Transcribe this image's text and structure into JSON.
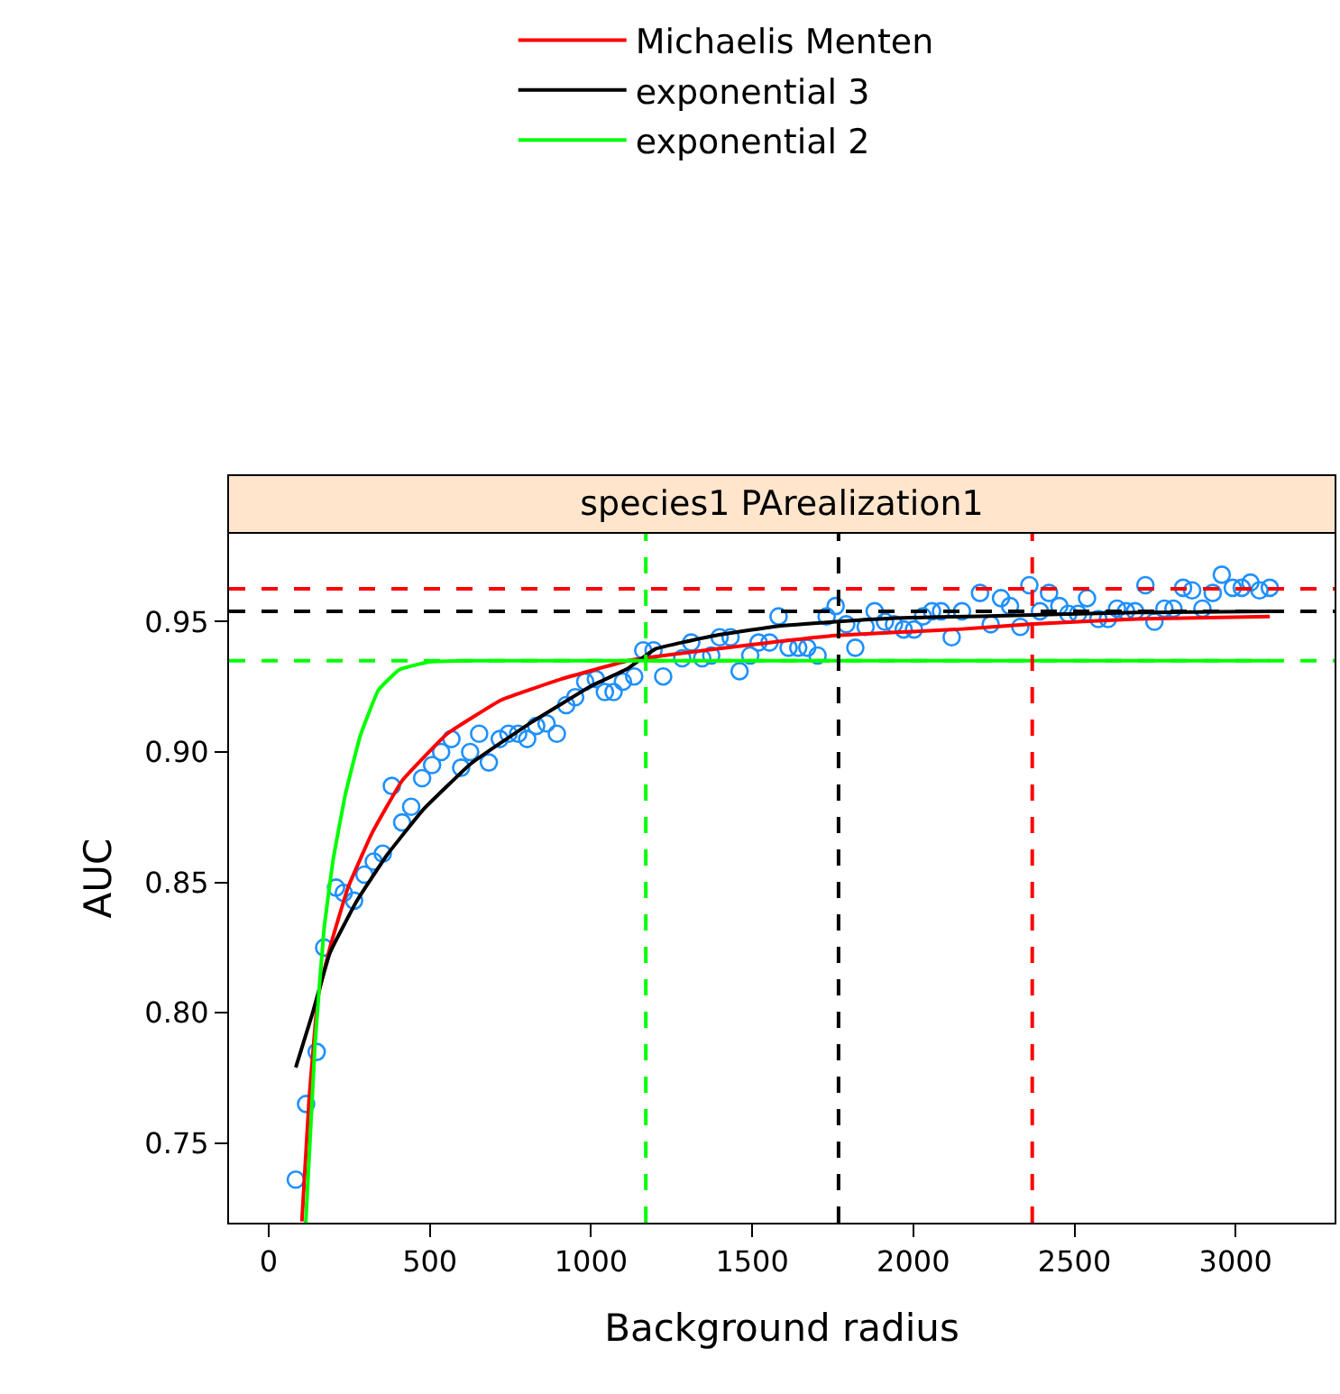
{
  "chart_data": {
    "type": "scatter",
    "title": "species1 PArealization1",
    "xlabel": "Background radius",
    "ylabel": "AUC",
    "xlim": [
      -123,
      3307
    ],
    "ylim": [
      0.7195,
      0.9837
    ],
    "xticks": [
      0,
      500,
      1000,
      1500,
      2000,
      2500,
      3000
    ],
    "yticks": [
      {
        "value": 0.75,
        "label": "0.75"
      },
      {
        "value": 0.8,
        "label": "0.80"
      },
      {
        "value": 0.85,
        "label": "0.85"
      },
      {
        "value": 0.9,
        "label": "0.90"
      },
      {
        "value": 0.95,
        "label": "0.95"
      }
    ],
    "legend": "top",
    "series": [
      {
        "marker": "circle",
        "color": "#1e90ff",
        "x": [
          84,
          116,
          149,
          172,
          209,
          233,
          265,
          297,
          326,
          354,
          382,
          414,
          442,
          476,
          507,
          535,
          567,
          597,
          625,
          653,
          683,
          717,
          744,
          774,
          802,
          830,
          862,
          894,
          923,
          951,
          982,
          1015,
          1043,
          1070,
          1099,
          1134,
          1162,
          1194,
          1224,
          1283,
          1311,
          1345,
          1373,
          1399,
          1433,
          1461,
          1494,
          1520,
          1554,
          1582,
          1613,
          1643,
          1671,
          1703,
          1731,
          1759,
          1792,
          1820,
          1852,
          1880,
          1912,
          1940,
          1970,
          2002,
          2030,
          2058,
          2086,
          2119,
          2151,
          2207,
          2240,
          2272,
          2300,
          2332,
          2360,
          2393,
          2421,
          2453,
          2481,
          2511,
          2539,
          2574,
          2604,
          2632,
          2660,
          2688,
          2720,
          2748,
          2779,
          2807,
          2837,
          2865,
          2897,
          2929,
          2957,
          2991,
          3019,
          3046,
          3074,
          3106
        ],
        "values": [
          0.736,
          0.765,
          0.785,
          0.825,
          0.848,
          0.846,
          0.843,
          0.853,
          0.858,
          0.861,
          0.887,
          0.873,
          0.879,
          0.89,
          0.895,
          0.9,
          0.905,
          0.894,
          0.9,
          0.907,
          0.896,
          0.905,
          0.907,
          0.907,
          0.905,
          0.91,
          0.911,
          0.907,
          0.918,
          0.921,
          0.927,
          0.928,
          0.923,
          0.923,
          0.927,
          0.929,
          0.939,
          0.939,
          0.929,
          0.936,
          0.942,
          0.936,
          0.937,
          0.944,
          0.944,
          0.931,
          0.937,
          0.942,
          0.942,
          0.952,
          0.94,
          0.94,
          0.94,
          0.937,
          0.952,
          0.956,
          0.949,
          0.94,
          0.948,
          0.954,
          0.95,
          0.949,
          0.947,
          0.947,
          0.952,
          0.954,
          0.954,
          0.944,
          0.954,
          0.961,
          0.949,
          0.959,
          0.956,
          0.948,
          0.964,
          0.954,
          0.961,
          0.956,
          0.953,
          0.953,
          0.959,
          0.951,
          0.951,
          0.955,
          0.954,
          0.954,
          0.964,
          0.95,
          0.955,
          0.955,
          0.963,
          0.962,
          0.955,
          0.961,
          0.968,
          0.963,
          0.963,
          0.965,
          0.962,
          0.963
        ]
      },
      {
        "type": "line",
        "marker": "none",
        "name": "Michaelis Menten",
        "color": "#ff0000",
        "x": [
          103,
          125,
          153,
          190,
          246,
          321,
          414,
          554,
          722,
          908,
          1114,
          1162,
          1386,
          1759,
          2132,
          2360,
          2692,
          3106
        ],
        "values": [
          0.72,
          0.766,
          0.806,
          0.825,
          0.848,
          0.869,
          0.889,
          0.907,
          0.92,
          0.928,
          0.935,
          0.936,
          0.9395,
          0.9447,
          0.947,
          0.949,
          0.951,
          0.952
        ]
      },
      {
        "type": "line",
        "marker": "none",
        "name": "exponential 3",
        "color": "#000000",
        "x": [
          84,
          134,
          190,
          274,
          367,
          480,
          628,
          815,
          1002,
          1114,
          1199,
          1386,
          1573,
          1759,
          1945,
          2207,
          2692,
          3106
        ],
        "values": [
          0.779,
          0.799,
          0.823,
          0.843,
          0.8605,
          0.878,
          0.8956,
          0.9114,
          0.9254,
          0.932,
          0.9395,
          0.9447,
          0.9482,
          0.95,
          0.9514,
          0.9521,
          0.9535,
          0.954
        ]
      },
      {
        "type": "line",
        "marker": "none",
        "name": "exponential 2",
        "color": "#00ff00",
        "x": [
          115,
          144,
          172,
          200,
          237,
          284,
          340,
          405,
          498,
          628,
          1000,
          2000,
          3106
        ],
        "values": [
          0.7195,
          0.7886,
          0.8325,
          0.8588,
          0.8833,
          0.9062,
          0.9237,
          0.9316,
          0.9346,
          0.935,
          0.935,
          0.935,
          0.935
        ]
      }
    ],
    "ref_lines": [
      {
        "axis": "y",
        "value": 0.9626,
        "color": "#ff0000",
        "line_style": "dashed"
      },
      {
        "axis": "y",
        "value": 0.954,
        "color": "#000000",
        "line_style": "dashed"
      },
      {
        "axis": "y",
        "value": 0.935,
        "color": "#00ff00",
        "line_style": "dashed"
      },
      {
        "axis": "x",
        "value": 1170,
        "color": "#00ff00",
        "line_style": "dashed"
      },
      {
        "axis": "x",
        "value": 1768,
        "color": "#000000",
        "line_style": "dashed"
      },
      {
        "axis": "x",
        "value": 2369,
        "color": "#ff0000",
        "line_style": "dashed"
      }
    ]
  }
}
